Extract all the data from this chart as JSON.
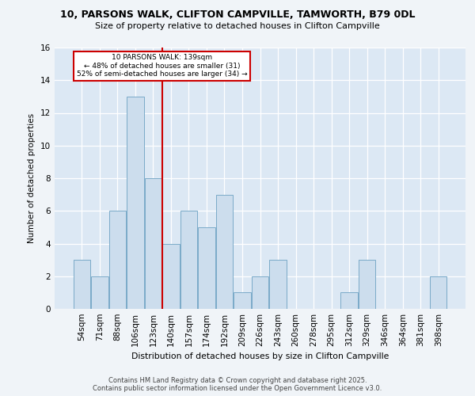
{
  "title1": "10, PARSONS WALK, CLIFTON CAMPVILLE, TAMWORTH, B79 0DL",
  "title2": "Size of property relative to detached houses in Clifton Campville",
  "xlabel": "Distribution of detached houses by size in Clifton Campville",
  "ylabel": "Number of detached properties",
  "categories": [
    "54sqm",
    "71sqm",
    "88sqm",
    "106sqm",
    "123sqm",
    "140sqm",
    "157sqm",
    "174sqm",
    "192sqm",
    "209sqm",
    "226sqm",
    "243sqm",
    "260sqm",
    "278sqm",
    "295sqm",
    "312sqm",
    "329sqm",
    "346sqm",
    "364sqm",
    "381sqm",
    "398sqm"
  ],
  "values": [
    3,
    2,
    6,
    13,
    8,
    4,
    6,
    5,
    7,
    1,
    2,
    3,
    0,
    0,
    0,
    1,
    3,
    0,
    0,
    0,
    2
  ],
  "bar_color": "#ccdded",
  "bar_edge_color": "#7aaac8",
  "vline_color": "#cc0000",
  "box_edge_color": "#cc0000",
  "ylim": [
    0,
    16
  ],
  "yticks": [
    0,
    2,
    4,
    6,
    8,
    10,
    12,
    14,
    16
  ],
  "ref_label": "10 PARSONS WALK: 139sqm",
  "ann_line1": "← 48% of detached houses are smaller (31)",
  "ann_line2": "52% of semi-detached houses are larger (34) →",
  "footer1": "Contains HM Land Registry data © Crown copyright and database right 2025.",
  "footer2": "Contains public sector information licensed under the Open Government Licence v3.0.",
  "fig_bg": "#f0f4f8",
  "plot_bg": "#dce8f4",
  "grid_color": "#b0c8e0"
}
